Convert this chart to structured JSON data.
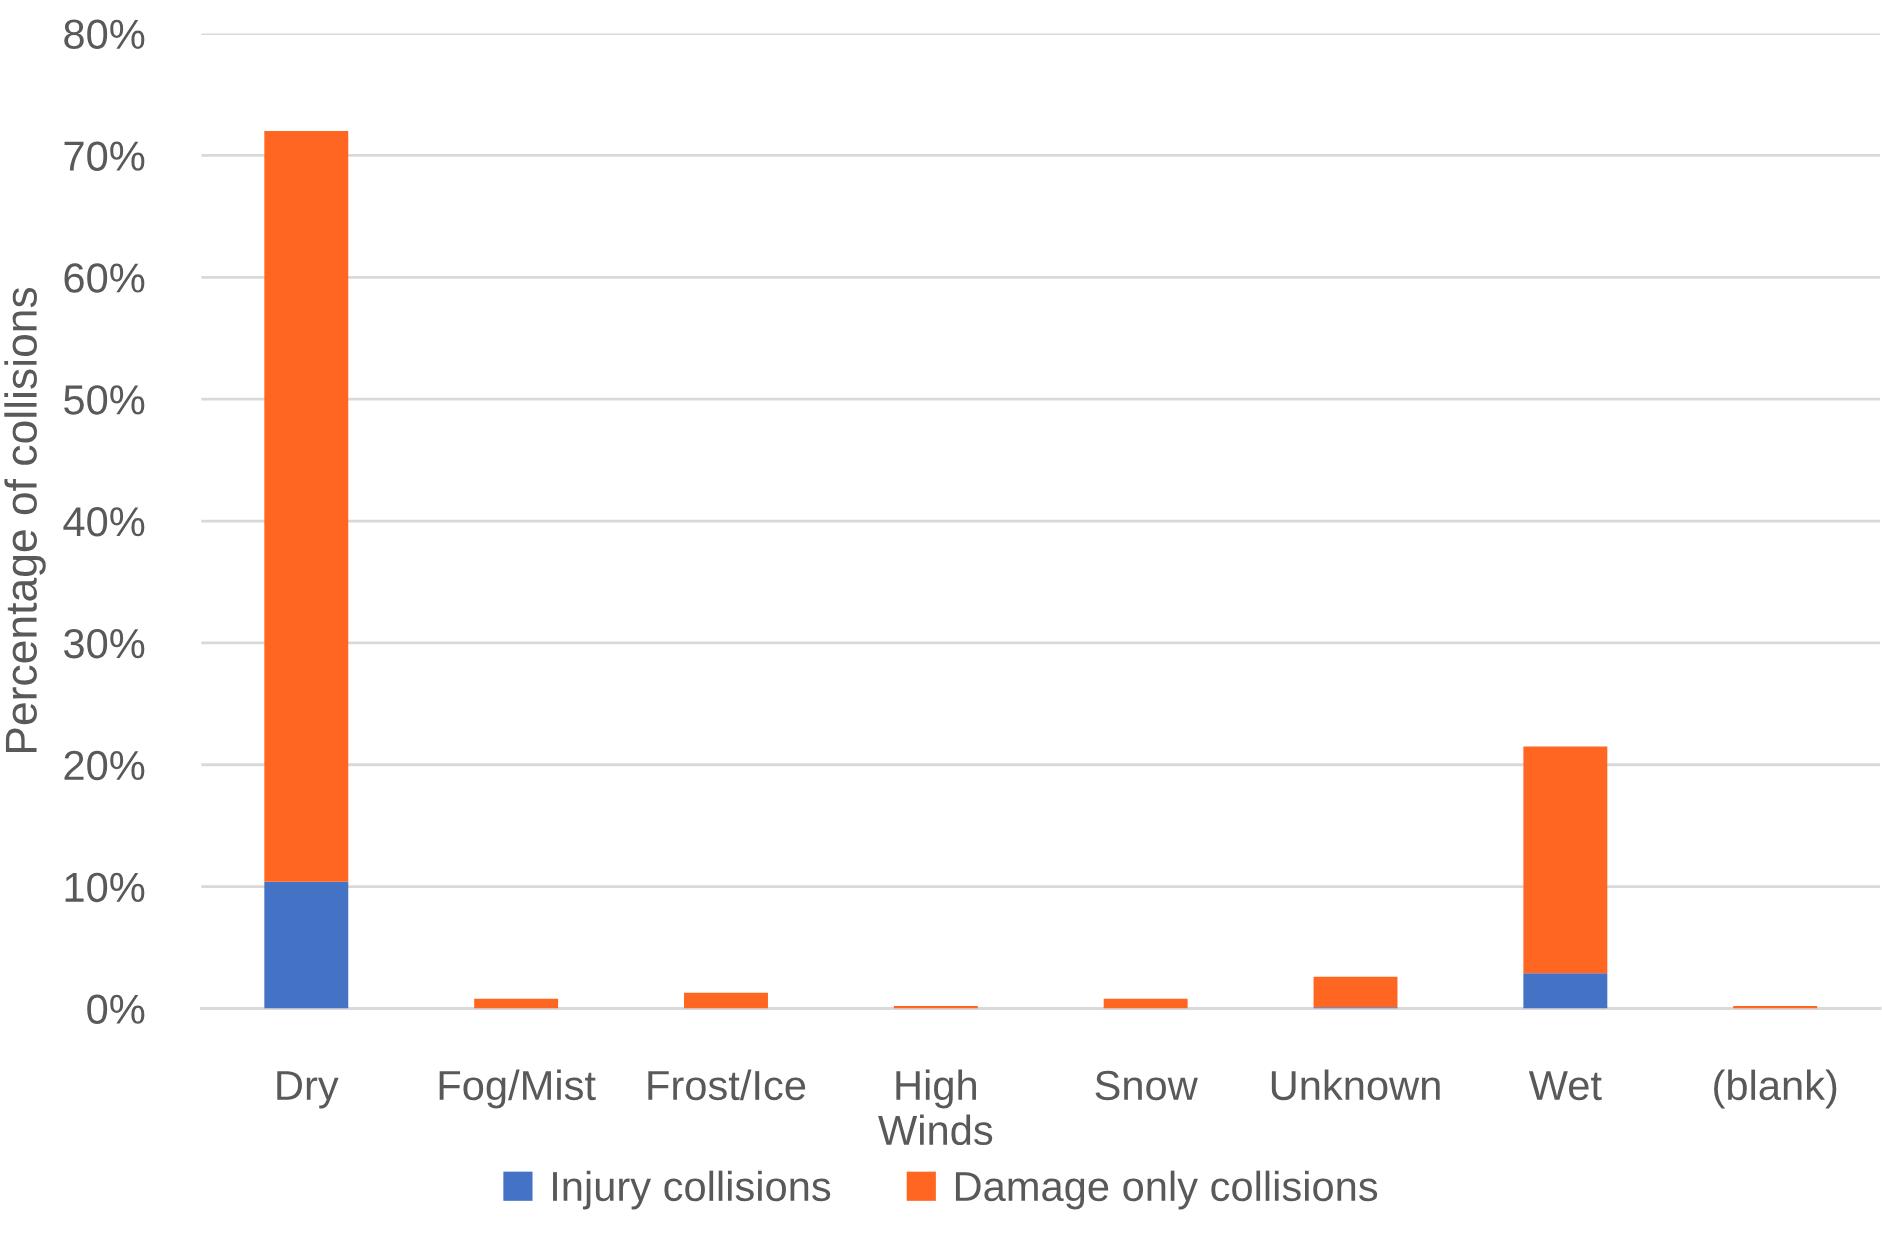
{
  "chart_data": {
    "type": "bar",
    "stacked": true,
    "ylabel": "Percentage of collisions",
    "categories": [
      "Dry",
      "Fog/Mist",
      "Frost/Ice",
      "High Winds",
      "Snow",
      "Unknown",
      "Wet",
      "(blank)"
    ],
    "series": [
      {
        "name": "Injury collisions",
        "color": "#4472c4",
        "values": [
          10.4,
          null,
          null,
          null,
          null,
          0.1,
          2.9,
          null
        ]
      },
      {
        "name": "Damage only collisions",
        "color": "#ff6622",
        "values": [
          61.6,
          0.8,
          1.3,
          0.2,
          0.8,
          2.5,
          18.6,
          0.2
        ]
      }
    ],
    "ylim": [
      0,
      80
    ],
    "yticks": [
      {
        "value": 0,
        "label": "0%"
      },
      {
        "value": 10,
        "label": "10%"
      },
      {
        "value": 20,
        "label": "20%"
      },
      {
        "value": 30,
        "label": "30%"
      },
      {
        "value": 40,
        "label": "40%"
      },
      {
        "value": 50,
        "label": "50%"
      },
      {
        "value": 60,
        "label": "60%"
      },
      {
        "value": 70,
        "label": "70%"
      },
      {
        "value": 80,
        "label": "80%"
      }
    ],
    "grid": "y",
    "legend": "bottom"
  }
}
